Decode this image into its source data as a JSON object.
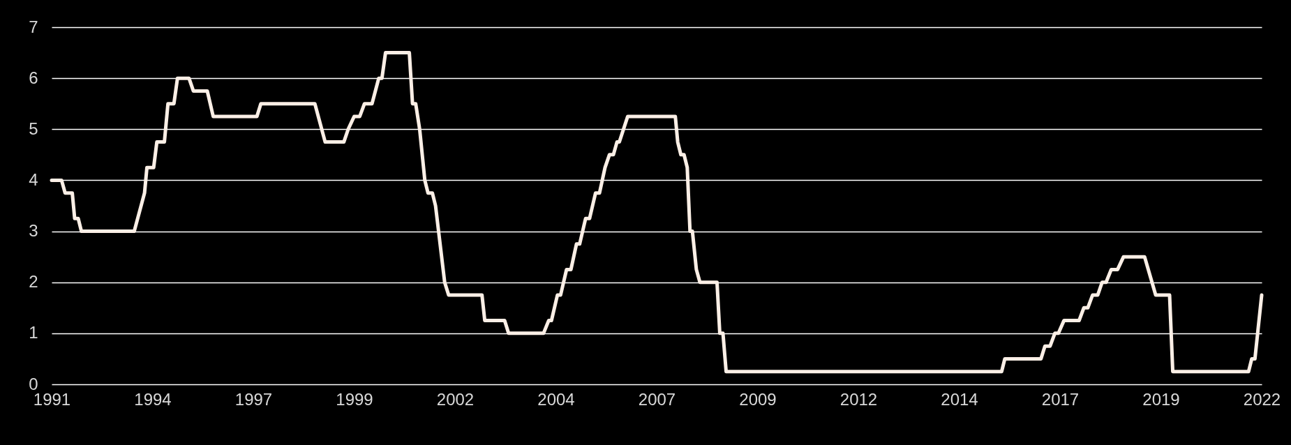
{
  "chart_data": {
    "type": "line",
    "xlim": [
      1991.46,
      2021.94
    ],
    "ylim": [
      0,
      7
    ],
    "yticks": [
      0,
      1,
      2,
      3,
      4,
      5,
      6,
      7
    ],
    "xticks": [
      {
        "value": 1991.46,
        "label": "1991"
      },
      1994,
      {
        "value": 1996.54,
        "label": "1997"
      },
      {
        "value": 1999.08,
        "label": "1999"
      },
      {
        "value": 2001.62,
        "label": "2002"
      },
      {
        "value": 2004.16,
        "label": "2004"
      },
      {
        "value": 2006.7,
        "label": "2007"
      },
      {
        "value": 2009.24,
        "label": "2009"
      },
      {
        "value": 2011.78,
        "label": "2012"
      },
      {
        "value": 2014.32,
        "label": "2014"
      },
      {
        "value": 2016.86,
        "label": "2017"
      },
      {
        "value": 2019.4,
        "label": "2019"
      },
      {
        "value": 2021.94,
        "label": "2022"
      }
    ],
    "grid": "y",
    "marker": "none",
    "line_style": "solid",
    "x": [
      1991.46,
      1991.71,
      1991.8,
      1991.98,
      1992.04,
      1992.13,
      1992.21,
      1993.54,
      1993.8,
      1993.86,
      1994.03,
      1994.11,
      1994.3,
      1994.39,
      1994.54,
      1994.63,
      1994.92,
      1995.03,
      1995.38,
      1995.53,
      1996.63,
      1996.73,
      1998.09,
      1998.35,
      1998.82,
      1998.93,
      1999.08,
      1999.22,
      1999.34,
      1999.53,
      1999.7,
      1999.78,
      1999.87,
      2000.47,
      2000.55,
      2000.63,
      2000.73,
      2000.86,
      2000.94,
      2001.05,
      2001.13,
      2001.36,
      2001.46,
      2002.3,
      2002.37,
      2002.87,
      2002.97,
      2003.85,
      2003.98,
      2004.05,
      2004.2,
      2004.28,
      2004.43,
      2004.54,
      2004.68,
      2004.76,
      2004.91,
      2005.01,
      2005.16,
      2005.26,
      2005.4,
      2005.51,
      2005.61,
      2005.7,
      2005.76,
      2005.97,
      2007.17,
      2007.23,
      2007.31,
      2007.39,
      2007.47,
      2007.54,
      2007.6,
      2007.7,
      2007.79,
      2008.22,
      2008.29,
      2008.37,
      2008.45,
      2015.39,
      2015.47,
      2016.38,
      2016.48,
      2016.61,
      2016.73,
      2016.82,
      2016.96,
      2017.34,
      2017.46,
      2017.56,
      2017.68,
      2017.81,
      2017.92,
      2018.02,
      2018.15,
      2018.31,
      2018.46,
      2018.99,
      2019.27,
      2019.62,
      2019.7,
      2021.61,
      2021.69,
      2021.77,
      2021.94
    ],
    "series": [
      {
        "color": "#fbefe6",
        "values": [
          4,
          4,
          3.75,
          3.75,
          3.25,
          3.25,
          3,
          3,
          3.75,
          4.25,
          4.25,
          4.75,
          4.75,
          5.5,
          5.5,
          6,
          6,
          5.75,
          5.75,
          5.25,
          5.25,
          5.5,
          5.5,
          4.75,
          4.75,
          5,
          5.25,
          5.25,
          5.5,
          5.5,
          6,
          6,
          6.5,
          6.5,
          5.5,
          5.5,
          5,
          4,
          3.75,
          3.75,
          3.5,
          2,
          1.75,
          1.75,
          1.25,
          1.25,
          1,
          1,
          1.25,
          1.25,
          1.75,
          1.75,
          2.25,
          2.25,
          2.75,
          2.75,
          3.25,
          3.25,
          3.75,
          3.75,
          4.25,
          4.5,
          4.5,
          4.75,
          4.75,
          5.25,
          5.25,
          4.75,
          4.5,
          4.5,
          4.25,
          3,
          3,
          2.25,
          2,
          2,
          1,
          1,
          0.25,
          0.25,
          0.5,
          0.5,
          0.75,
          0.75,
          1,
          1,
          1.25,
          1.25,
          1.5,
          1.5,
          1.75,
          1.75,
          2,
          2,
          2.25,
          2.25,
          2.5,
          2.5,
          1.75,
          1.75,
          0.25,
          0.25,
          0.5,
          0.5,
          1.75
        ]
      }
    ]
  }
}
